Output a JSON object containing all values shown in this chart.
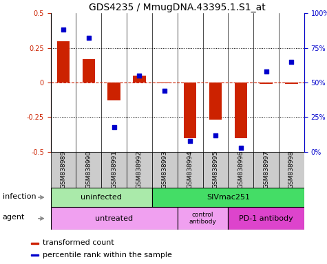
{
  "title": "GDS4235 / MmugDNA.43395.1.S1_at",
  "samples": [
    "GSM838989",
    "GSM838990",
    "GSM838991",
    "GSM838992",
    "GSM838993",
    "GSM838994",
    "GSM838995",
    "GSM838996",
    "GSM838997",
    "GSM838998"
  ],
  "transformed_count": [
    0.3,
    0.17,
    -0.13,
    0.05,
    -0.005,
    -0.4,
    -0.27,
    -0.4,
    -0.01,
    -0.01
  ],
  "percentile_rank": [
    88,
    82,
    18,
    55,
    44,
    8,
    12,
    3,
    58,
    65
  ],
  "ylim_left": [
    -0.5,
    0.5
  ],
  "ylim_right": [
    0,
    100
  ],
  "yticks_left": [
    -0.5,
    -0.25,
    0.0,
    0.25,
    0.5
  ],
  "ytick_labels_left": [
    "-0.5",
    "-0.25",
    "0",
    "0.25",
    "0.5"
  ],
  "yticks_right": [
    0,
    25,
    50,
    75,
    100
  ],
  "ytick_labels_right": [
    "0%",
    "25%",
    "50%",
    "75%",
    "100%"
  ],
  "bar_color": "#cc2200",
  "dot_color": "#0000cc",
  "zero_line_color": "#cc2200",
  "uninfected_color": "#aaeaaa",
  "sivmac_color": "#44dd66",
  "untreated_color": "#f0a0f0",
  "control_ab_color": "#f0a0f0",
  "pd1_color": "#dd44cc",
  "sample_bg_color": "#cccccc",
  "legend_bar_color": "#cc2200",
  "legend_dot_color": "#0000cc",
  "legend_text1": "transformed count",
  "legend_text2": "percentile rank within the sample",
  "row_label_infection": "infection",
  "row_label_agent": "agent",
  "title_fontsize": 10,
  "tick_fontsize": 7,
  "sample_fontsize": 6.5,
  "label_fontsize": 8,
  "annot_fontsize": 8,
  "legend_fontsize": 8
}
